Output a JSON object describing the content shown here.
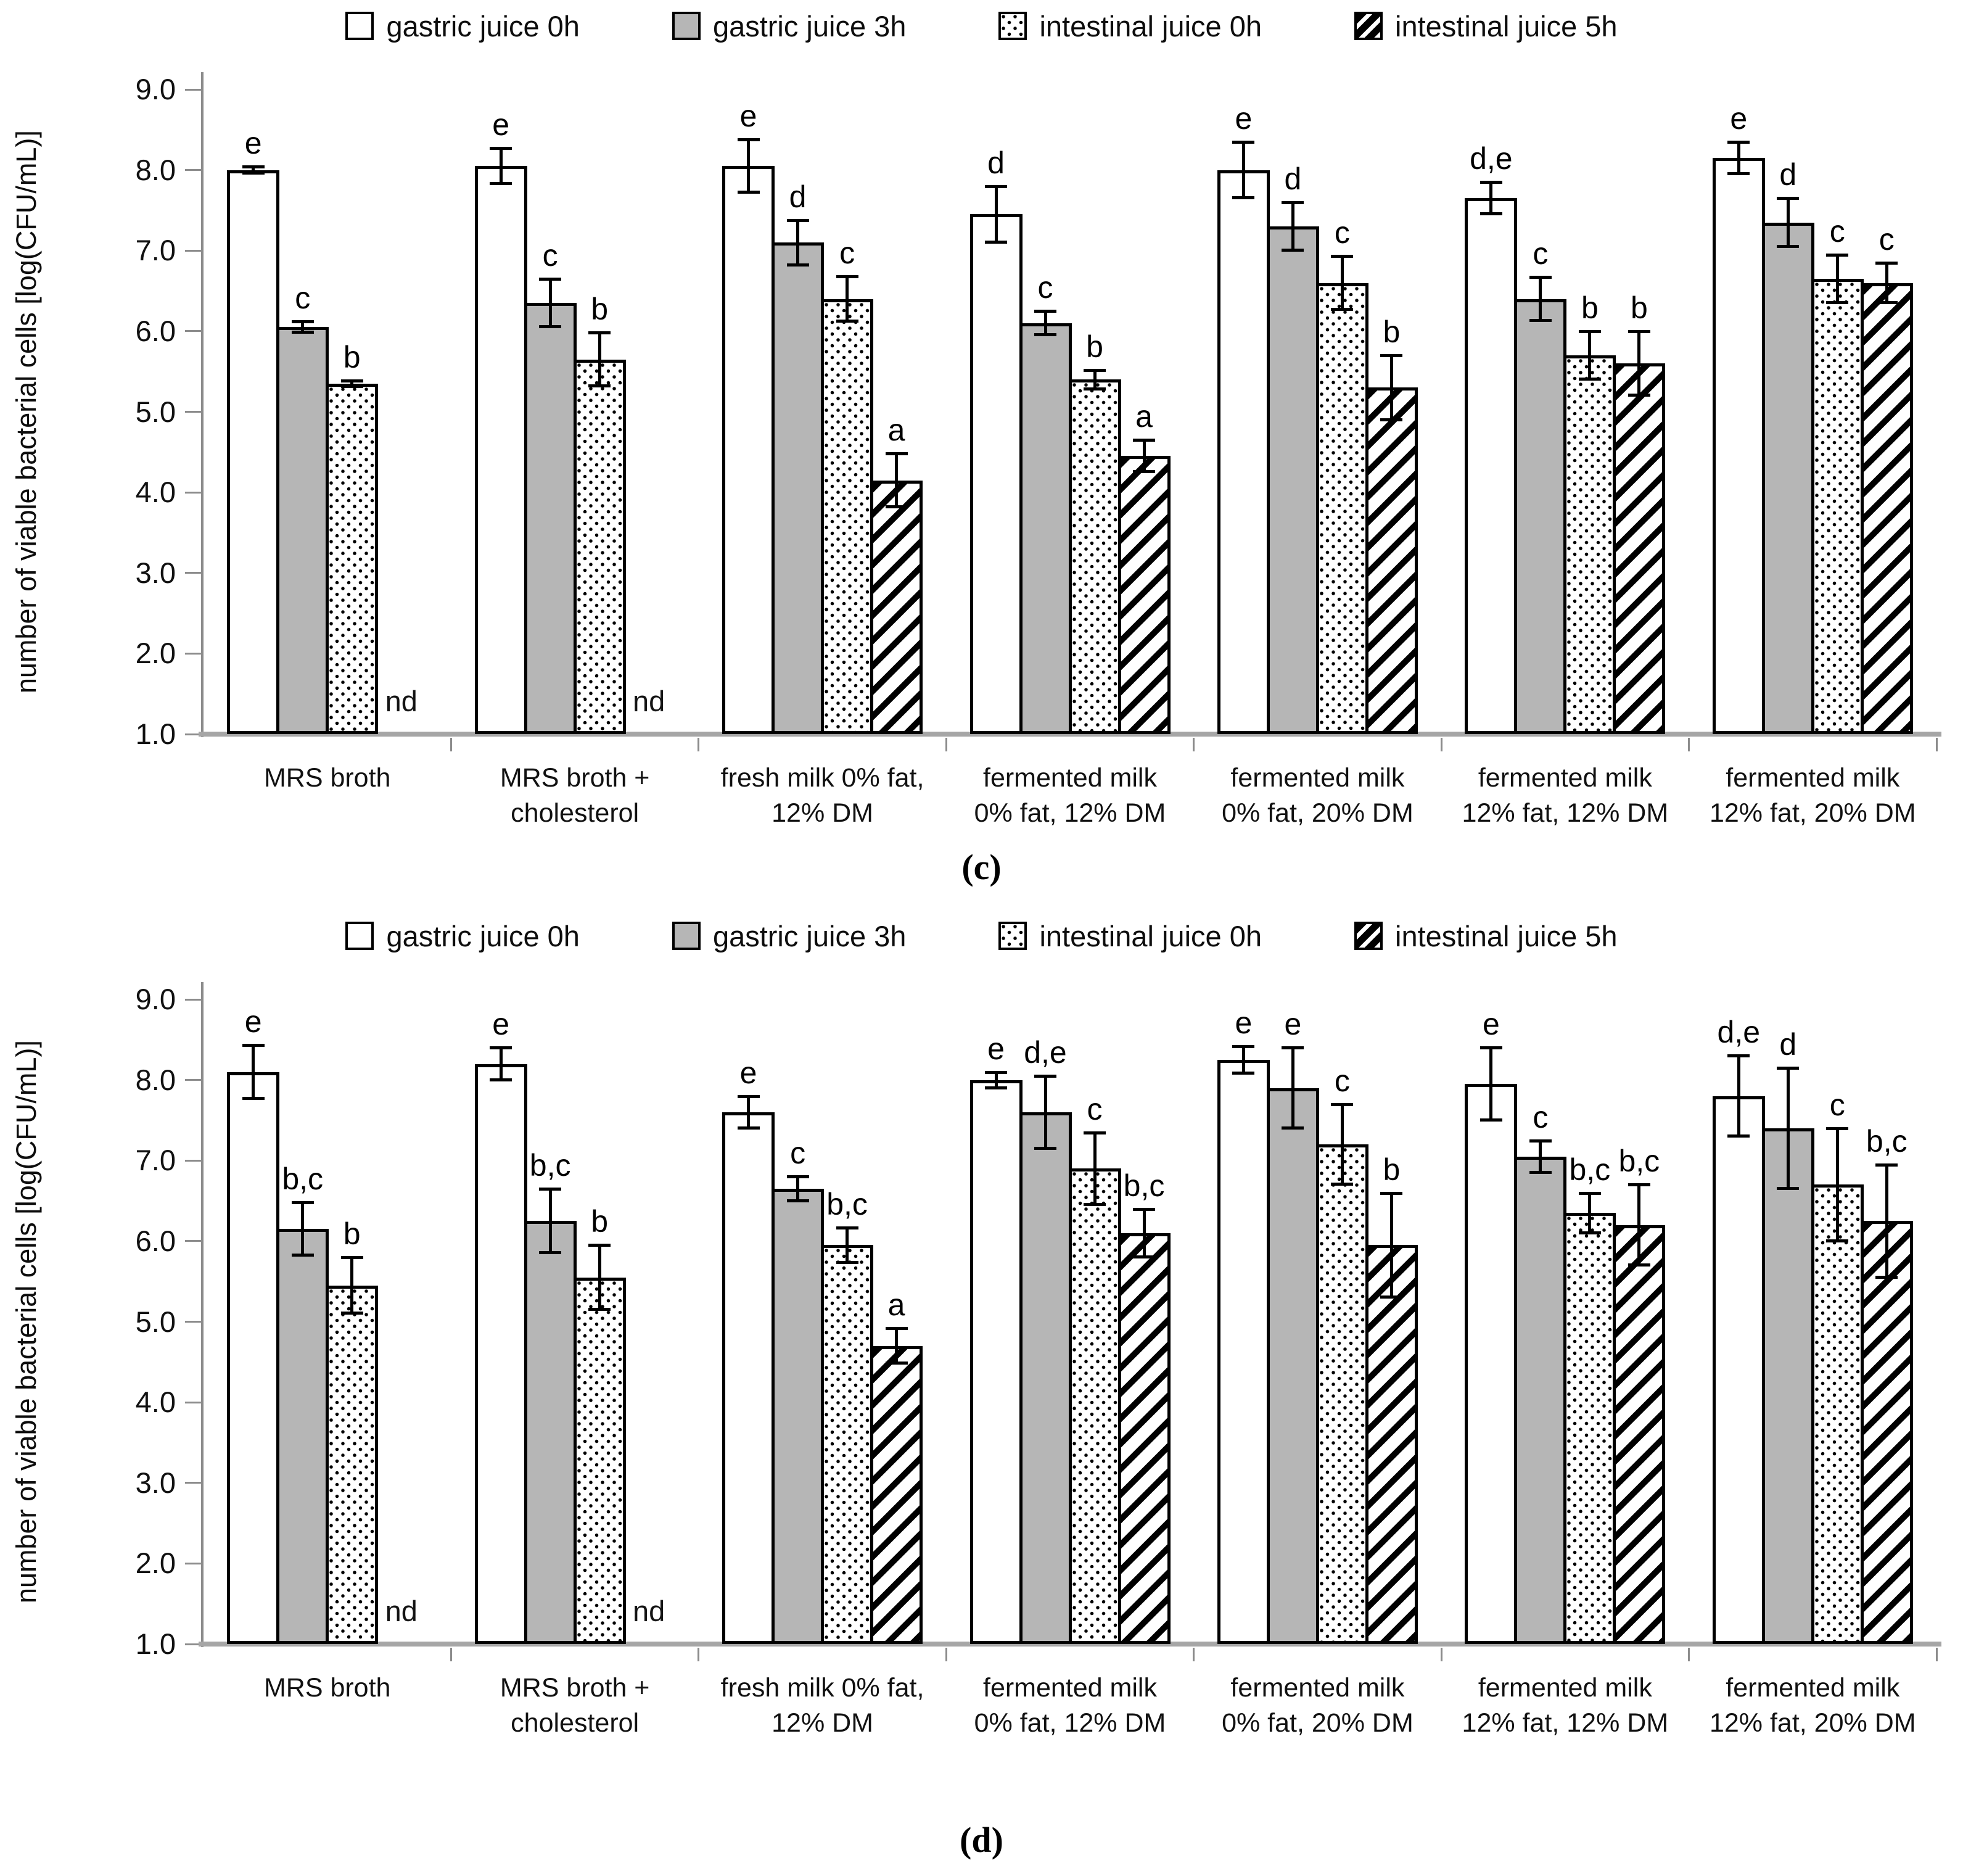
{
  "figure": {
    "description": "Two stacked grouped bar charts of bacterial survival in simulated digestive juices",
    "panel_captions": [
      "(c)",
      "(d)"
    ]
  },
  "colors": {
    "bar_gray": "#b6b6b6",
    "axis_gray": "#8c8c8c",
    "baseline_gray": "#a6a6a6",
    "ink": "#000000"
  },
  "chart_data": [
    {
      "type": "bar",
      "panel": "(c)",
      "title": "",
      "xlabel": "",
      "ylabel": "number of viable bacterial cells [log(CFU/mL)]",
      "ylim": [
        1.0,
        9.0
      ],
      "yticks": [
        "9.0",
        "8.0",
        "7.0",
        "6.0",
        "5.0",
        "4.0",
        "3.0",
        "2.0",
        "1.0"
      ],
      "grid": false,
      "legend_position": "top",
      "categories": [
        [
          "MRS broth"
        ],
        [
          "MRS broth +",
          "cholesterol"
        ],
        [
          "fresh milk 0% fat,",
          "12% DM"
        ],
        [
          "fermented milk",
          "0% fat, 12% DM"
        ],
        [
          "fermented milk",
          "0% fat, 20% DM"
        ],
        [
          "fermented milk",
          "12% fat, 12% DM"
        ],
        [
          "fermented milk",
          "12% fat, 20% DM"
        ]
      ],
      "series": [
        {
          "name": "gastric juice 0h",
          "pattern": "plain",
          "values": [
            8.0,
            8.05,
            8.05,
            7.45,
            8.0,
            7.65,
            8.15
          ],
          "errors": [
            0.04,
            0.22,
            0.33,
            0.35,
            0.35,
            0.2,
            0.2
          ],
          "letters": [
            "e",
            "e",
            "e",
            "d",
            "e",
            "d,e",
            "e"
          ]
        },
        {
          "name": "gastric juice 3h",
          "pattern": "gray",
          "values": [
            6.05,
            6.35,
            7.1,
            6.1,
            7.3,
            6.4,
            7.35
          ],
          "errors": [
            0.07,
            0.3,
            0.28,
            0.15,
            0.3,
            0.27,
            0.3
          ],
          "letters": [
            "c",
            "c",
            "d",
            "c",
            "d",
            "c",
            "d"
          ]
        },
        {
          "name": "intestinal juice 0h",
          "pattern": "dots",
          "values": [
            5.35,
            5.65,
            6.4,
            5.4,
            6.6,
            5.7,
            6.65
          ],
          "errors": [
            0.04,
            0.33,
            0.28,
            0.12,
            0.33,
            0.3,
            0.3
          ],
          "letters": [
            "b",
            "b",
            "c",
            "b",
            "c",
            "b",
            "c"
          ]
        },
        {
          "name": "intestinal juice 5h",
          "pattern": "hatch",
          "values": [
            null,
            null,
            4.15,
            4.45,
            5.3,
            5.6,
            6.6
          ],
          "errors": [
            null,
            null,
            0.33,
            0.2,
            0.4,
            0.4,
            0.25
          ],
          "letters": [
            "nd",
            "nd",
            "a",
            "a",
            "b",
            "b",
            "c"
          ]
        }
      ]
    },
    {
      "type": "bar",
      "panel": "(d)",
      "title": "",
      "xlabel": "",
      "ylabel": "number of viable bacterial cells [log(CFU/mL)]",
      "ylim": [
        1.0,
        9.0
      ],
      "yticks": [
        "9.0",
        "8.0",
        "7.0",
        "6.0",
        "5.0",
        "4.0",
        "3.0",
        "2.0",
        "1.0"
      ],
      "grid": false,
      "legend_position": "top",
      "categories": [
        [
          "MRS broth"
        ],
        [
          "MRS broth +",
          "cholesterol"
        ],
        [
          "fresh milk 0% fat,",
          "12% DM"
        ],
        [
          "fermented milk",
          "0% fat, 12% DM"
        ],
        [
          "fermented milk",
          "0% fat, 20% DM"
        ],
        [
          "fermented milk",
          "12% fat, 12% DM"
        ],
        [
          "fermented milk",
          "12% fat, 20% DM"
        ]
      ],
      "series": [
        {
          "name": "gastric juice 0h",
          "pattern": "plain",
          "values": [
            8.1,
            8.2,
            7.6,
            8.0,
            8.25,
            7.95,
            7.8
          ],
          "errors": [
            0.33,
            0.2,
            0.2,
            0.1,
            0.17,
            0.45,
            0.5
          ],
          "letters": [
            "e",
            "e",
            "e",
            "e",
            "e",
            "e",
            "d,e"
          ]
        },
        {
          "name": "gastric juice 3h",
          "pattern": "gray",
          "values": [
            6.15,
            6.25,
            6.65,
            7.6,
            7.9,
            7.05,
            7.4
          ],
          "errors": [
            0.33,
            0.4,
            0.15,
            0.45,
            0.5,
            0.2,
            0.75
          ],
          "letters": [
            "b,c",
            "b,c",
            "c",
            "d,e",
            "e",
            "c",
            "d"
          ]
        },
        {
          "name": "intestinal juice 0h",
          "pattern": "dots",
          "values": [
            5.45,
            5.55,
            5.95,
            6.9,
            7.2,
            6.35,
            6.7
          ],
          "errors": [
            0.35,
            0.4,
            0.22,
            0.45,
            0.5,
            0.25,
            0.7
          ],
          "letters": [
            "b",
            "b",
            "b,c",
            "c",
            "c",
            "b,c",
            "c"
          ]
        },
        {
          "name": "intestinal juice 5h",
          "pattern": "hatch",
          "values": [
            null,
            null,
            4.7,
            6.1,
            5.95,
            6.2,
            6.25
          ],
          "errors": [
            null,
            null,
            0.22,
            0.3,
            0.65,
            0.5,
            0.7
          ],
          "letters": [
            "nd",
            "nd",
            "a",
            "b,c",
            "b",
            "b,c",
            "b,c"
          ]
        }
      ]
    }
  ]
}
